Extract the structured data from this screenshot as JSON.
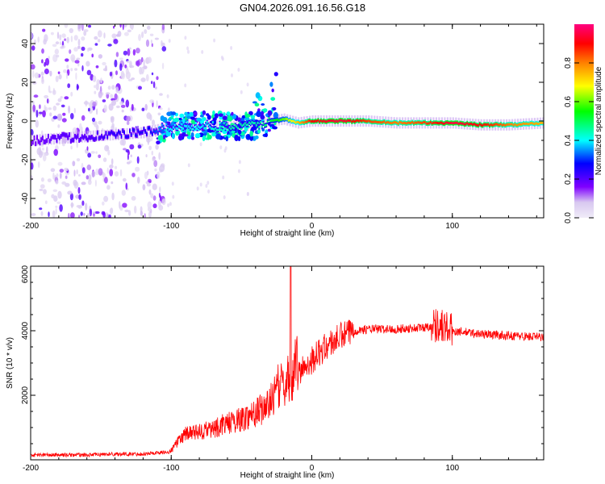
{
  "title": "GN04.2026.091.16.56.G18",
  "chart_data": [
    {
      "type": "heatmap",
      "xlabel": "Height of straight line (km)",
      "ylabel": "Frequency (Hz)",
      "xlim": [
        -200,
        165
      ],
      "ylim": [
        -50,
        50
      ],
      "x_ticks": [
        -200,
        -100,
        0,
        100
      ],
      "x_tick_labels": [
        "-200",
        "-100",
        "0",
        "100"
      ],
      "y_ticks": [
        -40,
        -20,
        0,
        20,
        40
      ],
      "y_tick_labels": [
        "-40",
        "-20",
        "0",
        "20",
        "40"
      ],
      "colorbar": {
        "label": "Normalized spectral amplitude",
        "range": [
          0,
          1
        ],
        "ticks": [
          0,
          0.2,
          0.4,
          0.6,
          0.8
        ],
        "tick_labels": [
          "0.0",
          "0.2",
          "0.4",
          "0.6",
          "0.8"
        ],
        "colors": [
          "#e8dff5",
          "#7f00ff",
          "#0000ff",
          "#00ffff",
          "#00ff00",
          "#ffff00",
          "#ff8000",
          "#ff0000",
          "#ff0080"
        ]
      },
      "trace": {
        "x": [
          -200,
          -180,
          -160,
          -140,
          -120,
          -100,
          -80,
          -60,
          -40,
          -30,
          -20,
          -10,
          0,
          20,
          40,
          60,
          80,
          100,
          120,
          140,
          165
        ],
        "f": [
          -10,
          -9,
          -8,
          -7,
          -6,
          -3,
          -2,
          -3,
          -2,
          0,
          1,
          -1,
          0,
          0,
          0,
          -1,
          -1,
          -1,
          -2,
          -2,
          -1
        ],
        "amp": [
          0.15,
          0.2,
          0.2,
          0.25,
          0.25,
          0.4,
          0.4,
          0.45,
          0.45,
          0.5,
          0.6,
          0.75,
          0.9,
          0.95,
          0.85,
          0.8,
          0.85,
          0.95,
          0.9,
          0.8,
          0.75
        ]
      }
    },
    {
      "type": "line",
      "xlabel": "Height of straight line (km)",
      "ylabel": "SNR (10 * v/v)",
      "xlim": [
        -200,
        165
      ],
      "ylim": [
        0,
        6000
      ],
      "x_ticks": [
        -200,
        -100,
        0,
        100
      ],
      "x_tick_labels": [
        "-200",
        "-100",
        "0",
        "100"
      ],
      "y_ticks": [
        2000,
        4000,
        6000
      ],
      "y_tick_labels": [
        "2000",
        "4000",
        "6000"
      ],
      "color": "#ff0000",
      "series": [
        {
          "name": "SNR",
          "x": [
            -200,
            -180,
            -160,
            -140,
            -120,
            -100,
            -95,
            -90,
            -80,
            -70,
            -60,
            -50,
            -40,
            -30,
            -25,
            -20,
            -15,
            -12,
            -10,
            -5,
            0,
            10,
            20,
            30,
            40,
            60,
            80,
            90,
            100,
            120,
            140,
            165
          ],
          "y": [
            150,
            150,
            150,
            180,
            180,
            250,
            500,
            700,
            750,
            850,
            1000,
            1100,
            1300,
            1500,
            2000,
            2000,
            2300,
            2400,
            2600,
            2900,
            3100,
            3500,
            3800,
            4000,
            4050,
            4050,
            4100,
            4200,
            4000,
            3900,
            3850,
            3800
          ]
        }
      ],
      "spike": {
        "x": -15,
        "y": 6000
      }
    }
  ]
}
